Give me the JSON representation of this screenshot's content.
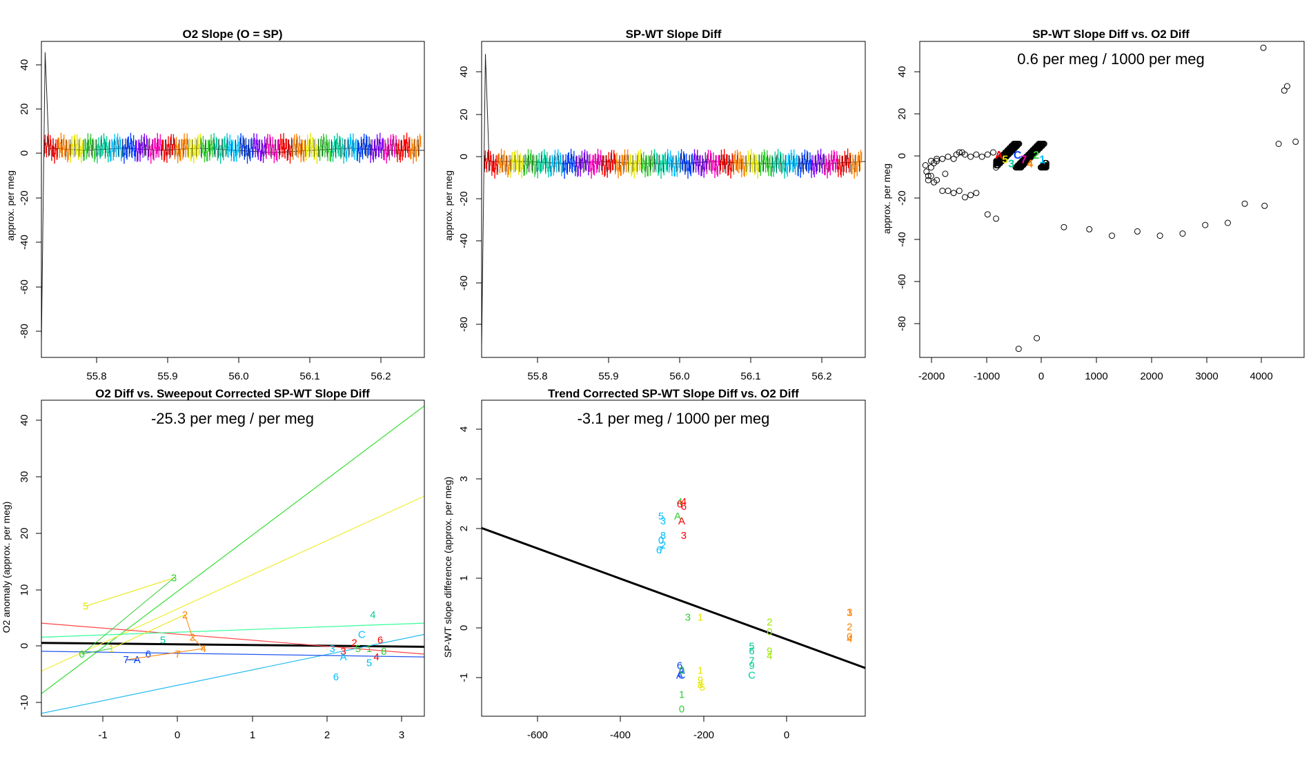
{
  "chart_data": [
    {
      "type": "line",
      "title": "O2 Slope (O = SP)",
      "xlabel": "",
      "ylabel": "approx. per meg",
      "xlim": [
        55.74,
        56.25
      ],
      "ylim": [
        -95,
        50
      ],
      "xticks": [
        "55.8",
        "55.9",
        "56.0",
        "56.1",
        "56.2"
      ],
      "yticks": [
        "40",
        "20",
        "0",
        "-20",
        "-40",
        "-60",
        "-80"
      ],
      "series": [
        {
          "name": "O2 slope",
          "x": [
            55.74,
            55.745,
            55.75,
            55.8,
            55.85,
            55.9,
            55.95,
            56.0,
            56.05,
            56.1,
            56.15,
            56.2,
            56.25
          ],
          "values": [
            -88,
            45,
            1,
            0,
            1,
            0,
            1,
            0,
            -1,
            0,
            1,
            0,
            0
          ]
        }
      ]
    },
    {
      "type": "line",
      "title": "SP-WT Slope Diff",
      "xlabel": "",
      "ylabel": "approx. per meg",
      "xlim": [
        55.74,
        56.25
      ],
      "ylim": [
        -95,
        55
      ],
      "xticks": [
        "55.8",
        "55.9",
        "56.0",
        "56.1",
        "56.2"
      ],
      "yticks": [
        "40",
        "20",
        "0",
        "-20",
        "-40",
        "-60",
        "-80"
      ],
      "series": [
        {
          "name": "slope diff",
          "x": [
            55.74,
            55.745,
            55.75,
            55.8,
            55.85,
            55.9,
            55.95,
            56.0,
            56.05,
            56.1,
            56.15,
            56.2,
            56.25
          ],
          "values": [
            -90,
            49,
            -2,
            -2,
            -3,
            -2,
            -3,
            -3,
            -2,
            -3,
            -3,
            -3,
            -2
          ]
        }
      ]
    },
    {
      "type": "scatter",
      "title": "SP-WT Slope Diff vs. O2 Diff",
      "annotation": "0.6 per meg / 1000 per meg",
      "xlabel": "",
      "ylabel": "approx. per meg",
      "xlim": [
        -2100,
        4700
      ],
      "ylim": [
        -95,
        53
      ],
      "xticks": [
        "-2000",
        "-1000",
        "0",
        "1000",
        "2000",
        "3000",
        "4000"
      ],
      "yticks": [
        "40",
        "20",
        "0",
        "-20",
        "-40",
        "-60",
        "-80"
      ],
      "x": [
        -2000,
        -1980,
        -1950,
        -1900,
        -1850,
        -1800,
        -1700,
        -1600,
        -1500,
        -1450,
        -1400,
        -1350,
        -1300,
        -1200,
        -1100,
        -1000,
        -900,
        -800,
        -1950,
        -1900,
        -1850,
        -1800,
        -1700,
        -1600,
        -1500,
        -1400,
        -1300,
        -1200,
        -1100,
        -900,
        -750,
        450,
        900,
        1300,
        1750,
        2150,
        2550,
        2950,
        3350,
        3650,
        4000,
        4250,
        4350,
        4400,
        4550,
        3980,
        -350,
        -30,
        -1900,
        -1800,
        -1650
      ],
      "values": [
        -5,
        -8,
        -10,
        -6,
        -4,
        -3,
        -2,
        -1,
        -2,
        0,
        1,
        1,
        0,
        -1,
        0,
        -1,
        0,
        1,
        -12,
        -10,
        -13,
        -12,
        -17,
        -17,
        -18,
        -17,
        -20,
        -19,
        -18,
        -28,
        -30,
        -34,
        -35,
        -38,
        -36,
        -38,
        -37,
        -33,
        -32,
        -23,
        -24,
        5,
        30,
        32,
        6,
        50,
        -91,
        -86,
        -3,
        -2,
        -9
      ]
    },
    {
      "type": "scatter",
      "title": "O2 Diff vs. Sweepout Corrected SP-WT Slope Diff",
      "annotation": "-25.3 per meg / per meg",
      "xlabel": "",
      "ylabel": "O2 anomaly (approx. per meg)",
      "xlim": [
        -1.9,
        3.3
      ],
      "ylim": [
        -12,
        44
      ],
      "xticks": [
        "-1",
        "0",
        "1",
        "2",
        "3"
      ],
      "yticks": [
        "40",
        "30",
        "20",
        "10",
        "0",
        "-10"
      ],
      "labels": [
        "5",
        "3",
        "0",
        "1",
        "2",
        "2",
        "4",
        "7",
        "A",
        "6",
        "5",
        "4",
        "1",
        "7",
        "3",
        "C",
        "6",
        "2",
        "4",
        "3",
        "5",
        "A",
        "6",
        "5",
        "8"
      ],
      "x": [
        -1.3,
        -0.1,
        -1.35,
        -0.95,
        0.05,
        0.15,
        0.3,
        -0.75,
        -0.6,
        -0.45,
        -0.25,
        2.6,
        2.55,
        -0.05,
        2.2,
        2.45,
        2.7,
        2.35,
        2.65,
        2.05,
        2.55,
        2.2,
        2.1,
        2.4,
        2.75
      ],
      "values": [
        7.5,
        12.5,
        -1,
        0,
        6,
        2,
        0,
        -2,
        -2,
        -1,
        1.5,
        6,
        0,
        -1,
        -0.5,
        2.5,
        1.5,
        1,
        -1.5,
        0,
        -2.5,
        -1.5,
        -5,
        0,
        -0.5
      ],
      "series": [
        {
          "name": "fit",
          "x": [
            -1.9,
            3.3
          ],
          "values": [
            1.0,
            0.3
          ]
        },
        {
          "name": "green",
          "x": [
            -1.9,
            3.3
          ],
          "values": [
            -8,
            43
          ]
        },
        {
          "name": "yellow",
          "x": [
            -1.9,
            3.3
          ],
          "values": [
            -4,
            27
          ]
        },
        {
          "name": "red",
          "x": [
            -1.9,
            3.3
          ],
          "values": [
            4.5,
            -1
          ]
        },
        {
          "name": "lightgreen",
          "x": [
            -1.9,
            3.3
          ],
          "values": [
            2,
            4.5
          ]
        },
        {
          "name": "cyan",
          "x": [
            -1.9,
            3.3
          ],
          "values": [
            -11.5,
            2.5
          ]
        },
        {
          "name": "blue",
          "x": [
            -1.9,
            3.3
          ],
          "values": [
            -0.5,
            -1.5
          ]
        }
      ]
    },
    {
      "type": "scatter",
      "title": "Trend Corrected SP-WT Slope Diff vs. O2 Diff",
      "annotation": "-3.1 per meg / 1000 per meg",
      "xlabel": "",
      "ylabel": "SP-WT slope difference (approx. per meg)",
      "xlim": [
        -740,
        190
      ],
      "ylim": [
        -1.75,
        4.8
      ],
      "xticks": [
        "-600",
        "-400",
        "-200",
        "0"
      ],
      "yticks": [
        "4",
        "3",
        "2",
        "1",
        "0",
        "-1"
      ],
      "labels": [
        "4",
        "6",
        "A",
        "4",
        "6",
        "A",
        "5",
        "3",
        "8",
        "0",
        "2",
        "7",
        "6",
        "3",
        "3",
        "1",
        "2",
        "0",
        "9",
        "4",
        "5",
        "6",
        "9",
        "C",
        "7",
        "6",
        "4",
        "C",
        "A",
        "0",
        "1",
        "0",
        "1",
        "9",
        "8",
        "5",
        "3",
        "1",
        "2",
        "0",
        "4"
      ],
      "x": [
        -260,
        -260,
        -265,
        -250,
        -250,
        -255,
        -305,
        -300,
        -300,
        -305,
        -300,
        -305,
        -310,
        -250,
        -240,
        -210,
        -42,
        -42,
        -42,
        -42,
        -85,
        -85,
        -85,
        -85,
        -85,
        -260,
        -255,
        -255,
        -260,
        -255,
        -255,
        -255,
        -210,
        -210,
        -210,
        -205,
        152,
        152,
        152,
        152,
        152
      ],
      "values": [
        2.7,
        2.65,
        2.4,
        2.7,
        2.6,
        2.3,
        2.4,
        2.3,
        2.0,
        1.9,
        1.8,
        1.7,
        1.7,
        2.0,
        0.3,
        0.3,
        0.2,
        0.0,
        -0.4,
        -0.5,
        -0.3,
        -0.4,
        -0.7,
        -0.9,
        -0.6,
        -0.7,
        -0.8,
        -0.9,
        -0.9,
        -0.8,
        -1.3,
        -1.6,
        -0.8,
        -1.0,
        -1.1,
        -1.15,
        0.4,
        0.4,
        0.1,
        -0.1,
        -0.15
      ],
      "series": [
        {
          "name": "fit",
          "x": [
            -740,
            190
          ],
          "values": [
            2.15,
            -0.75
          ]
        }
      ]
    }
  ]
}
